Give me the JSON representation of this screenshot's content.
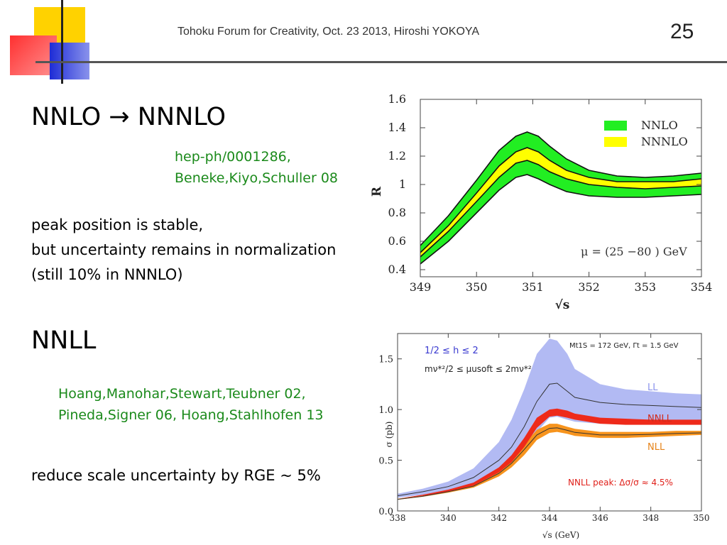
{
  "header": {
    "title": "Tohoku Forum for Creativity, Oct. 23 2013, Hiroshi YOKOYA",
    "page_number": "25"
  },
  "section1": {
    "heading": "NNLO → NNNLO",
    "ref_lines": [
      "hep-ph/0001286,",
      "Beneke,Kiyo,Schuller 08"
    ],
    "body_lines": [
      "peak position is stable,",
      "but uncertainty remains in normalization",
      "(still 10% in NNNLO)"
    ]
  },
  "section2": {
    "heading": "NNLL",
    "ref_lines": [
      "Hoang,Manohar,Stewart,Teubner 02,",
      "Pineda,Signer 06, Hoang,Stahlhofen 13"
    ],
    "body_lines": [
      "reduce scale uncertainty by RGE ~ 5%"
    ]
  },
  "colors": {
    "green_band": "#22ee22",
    "yellow_band": "#ffff00",
    "blue_band": "#aab2f2",
    "red_band": "#ee2a1a",
    "orange_band": "#f7941d",
    "ref_text": "#1b8a1b"
  },
  "chart_data": [
    {
      "type": "area",
      "xlabel": "√s",
      "ylabel": "R",
      "xlim": [
        349,
        354
      ],
      "ylim": [
        0.35,
        1.6
      ],
      "x_ticks": [
        349,
        350,
        351,
        352,
        353,
        354
      ],
      "y_ticks": [
        0.4,
        0.6,
        0.8,
        1,
        1.2,
        1.4,
        1.6
      ],
      "y_tick_labels": [
        "0.4",
        "0.6",
        "0.8",
        "1",
        "1.2",
        "1.4",
        "1.6"
      ],
      "legend": {
        "position": "top-right",
        "entries": [
          "NNLO",
          "NNNLO"
        ]
      },
      "annotation": "μ = (25 −80 ) GeV",
      "x": [
        349.0,
        349.5,
        350.0,
        350.4,
        350.7,
        350.9,
        351.1,
        351.3,
        351.6,
        352.0,
        352.5,
        353.0,
        353.5,
        354.0
      ],
      "series": [
        {
          "name": "NNLO",
          "lower": [
            0.44,
            0.6,
            0.8,
            0.96,
            1.05,
            1.07,
            1.04,
            1.0,
            0.95,
            0.92,
            0.91,
            0.91,
            0.92,
            0.93
          ],
          "upper": [
            0.57,
            0.78,
            1.03,
            1.24,
            1.34,
            1.37,
            1.34,
            1.27,
            1.18,
            1.1,
            1.06,
            1.05,
            1.06,
            1.08
          ]
        },
        {
          "name": "NNNLO",
          "lower": [
            0.49,
            0.67,
            0.88,
            1.05,
            1.15,
            1.17,
            1.14,
            1.09,
            1.04,
            1.0,
            0.98,
            0.97,
            0.98,
            0.99
          ],
          "upper": [
            0.52,
            0.71,
            0.94,
            1.13,
            1.23,
            1.26,
            1.23,
            1.17,
            1.1,
            1.05,
            1.02,
            1.02,
            1.02,
            1.04
          ]
        }
      ]
    },
    {
      "type": "area",
      "xlabel": "√s (GeV)",
      "ylabel": "σ (pb)",
      "xlim": [
        338,
        350
      ],
      "ylim": [
        0,
        1.75
      ],
      "x_ticks": [
        338,
        340,
        342,
        344,
        346,
        348,
        350
      ],
      "y_ticks": [
        0,
        0.5,
        1.0,
        1.5
      ],
      "y_tick_labels": [
        "0.0",
        "0.5",
        "1.0",
        "1.5"
      ],
      "annotations": [
        "1/2 ≤ h ≤ 2",
        "mν*²/2 ≤ μusoft ≤ 2mν*²",
        "Mt1S = 172 GeV, Γt = 1.5 GeV",
        "NNLL peak: Δσ/σ ≈ 4.5%"
      ],
      "x": [
        338,
        339,
        340,
        341,
        342,
        342.5,
        343,
        343.5,
        344,
        344.3,
        344.7,
        345,
        346,
        347,
        348,
        349,
        350
      ],
      "series": [
        {
          "name": "LL",
          "lower": [
            0.13,
            0.16,
            0.2,
            0.26,
            0.37,
            0.46,
            0.6,
            0.78,
            0.92,
            0.93,
            0.9,
            0.88,
            0.86,
            0.86,
            0.86,
            0.86,
            0.86
          ],
          "upper": [
            0.17,
            0.22,
            0.29,
            0.42,
            0.68,
            0.9,
            1.2,
            1.55,
            1.7,
            1.68,
            1.55,
            1.4,
            1.25,
            1.2,
            1.18,
            1.16,
            1.15
          ],
          "center": [
            0.15,
            0.19,
            0.24,
            0.33,
            0.5,
            0.63,
            0.83,
            1.08,
            1.25,
            1.26,
            1.18,
            1.12,
            1.07,
            1.05,
            1.04,
            1.03,
            1.02
          ]
        },
        {
          "name": "NNLL",
          "lower": [
            0.12,
            0.15,
            0.19,
            0.25,
            0.38,
            0.48,
            0.63,
            0.82,
            0.93,
            0.94,
            0.92,
            0.9,
            0.86,
            0.85,
            0.85,
            0.85,
            0.85
          ],
          "upper": [
            0.12,
            0.16,
            0.21,
            0.28,
            0.43,
            0.55,
            0.72,
            0.92,
            1.0,
            1.01,
            0.99,
            0.96,
            0.92,
            0.91,
            0.9,
            0.9,
            0.9
          ]
        },
        {
          "name": "NLL",
          "lower": [
            0.11,
            0.14,
            0.18,
            0.23,
            0.34,
            0.43,
            0.55,
            0.7,
            0.77,
            0.78,
            0.76,
            0.74,
            0.72,
            0.72,
            0.73,
            0.74,
            0.75
          ],
          "upper": [
            0.12,
            0.15,
            0.2,
            0.26,
            0.4,
            0.51,
            0.66,
            0.8,
            0.86,
            0.86,
            0.83,
            0.81,
            0.78,
            0.78,
            0.78,
            0.79,
            0.79
          ]
        }
      ]
    }
  ]
}
